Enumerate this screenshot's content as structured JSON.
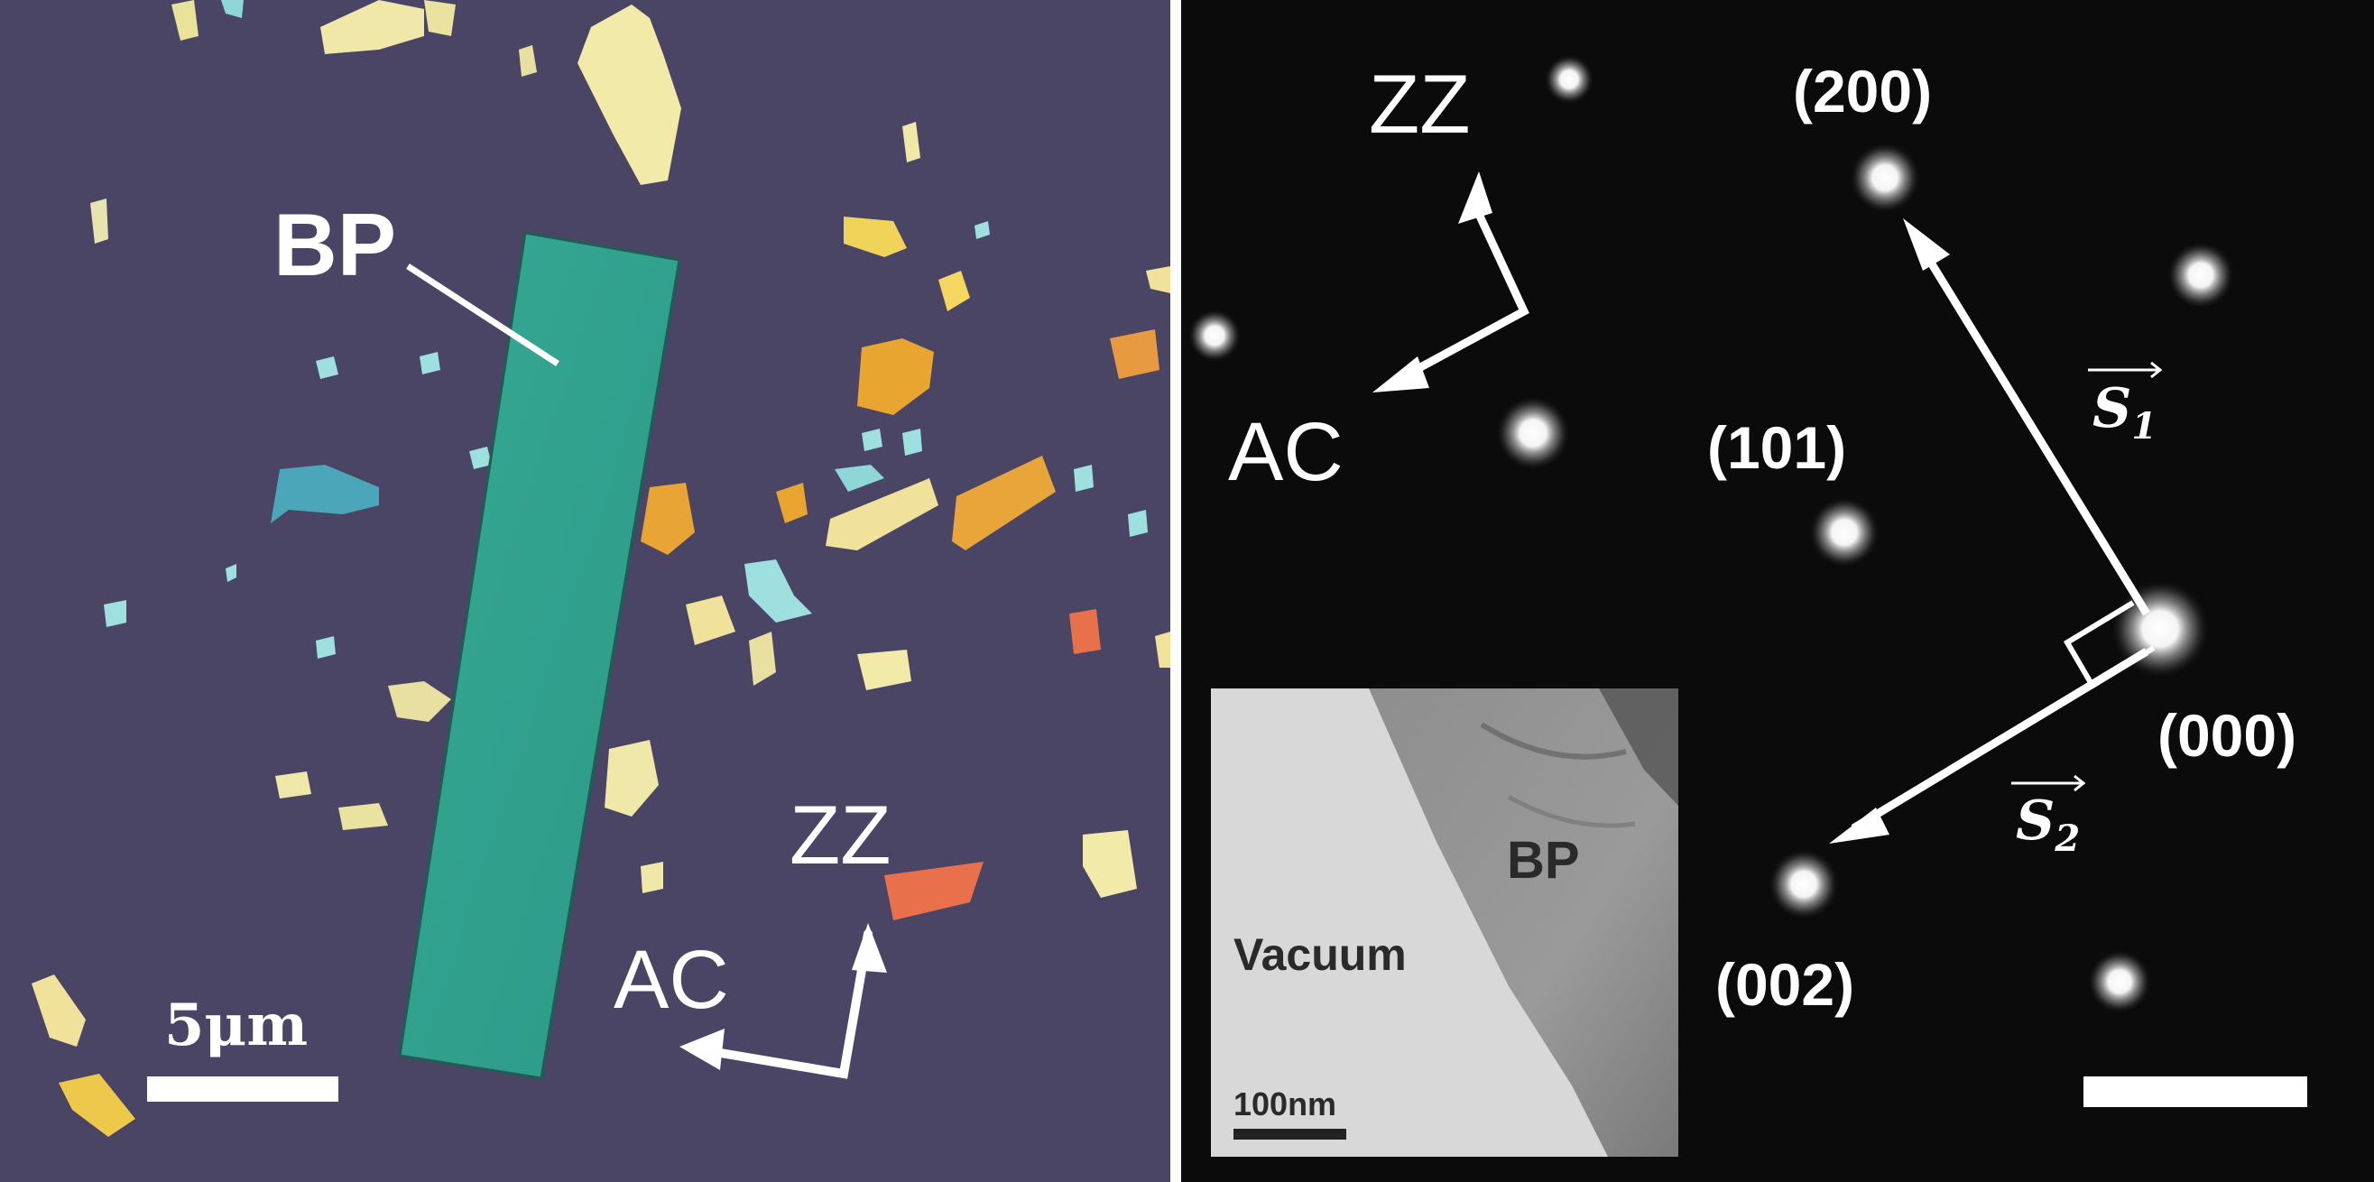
{
  "left_panel": {
    "label_bp": "BP",
    "label_zz": "ZZ",
    "label_ac": "AC",
    "scale_label": "5μm",
    "colors": {
      "substrate": "#4a4465",
      "bp_flake": "#2f9f8e"
    }
  },
  "right_panel": {
    "label_zz": "ZZ",
    "label_ac": "AC",
    "spot_200": "(200)",
    "spot_101": "(101)",
    "spot_000": "(000)",
    "spot_002": "(002)",
    "vector_s1": "S",
    "vector_s1_sub": "1",
    "vector_s2": "S",
    "vector_s2_sub": "2",
    "inset": {
      "label_bp": "BP",
      "label_vacuum": "Vacuum",
      "scale_label": "100nm"
    }
  }
}
